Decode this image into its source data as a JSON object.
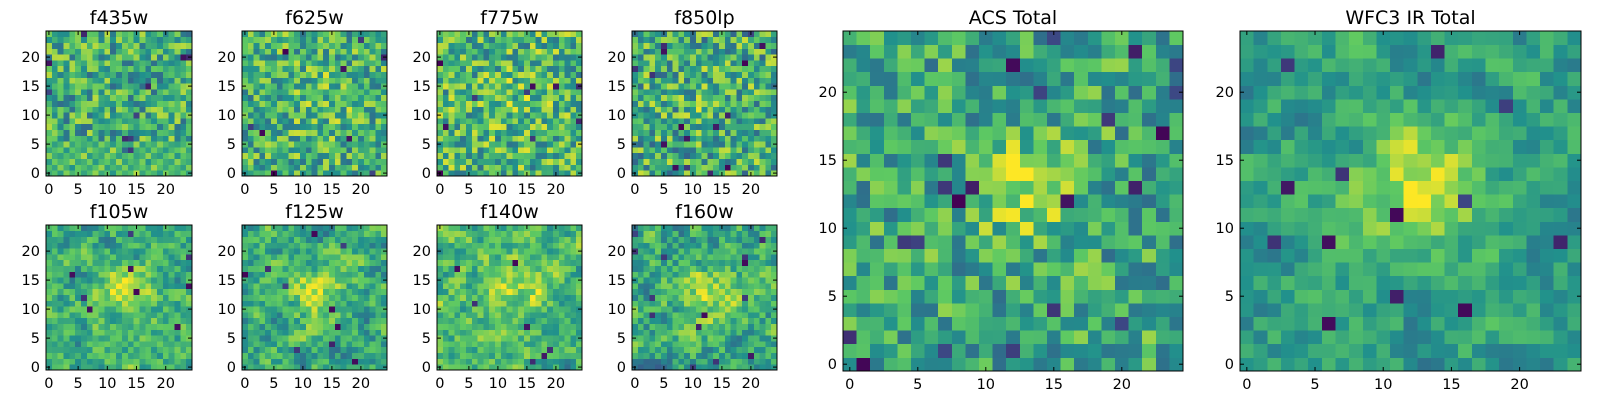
{
  "figure": {
    "colormap": "viridis",
    "colormap_stops": [
      "#440154",
      "#3b528b",
      "#21918c",
      "#5ec962",
      "#fde725"
    ]
  },
  "chart_data": [
    {
      "type": "heatmap",
      "title": "f435w",
      "grid_size": 25,
      "xlim": [
        -0.5,
        24.5
      ],
      "ylim": [
        -0.5,
        24.5
      ],
      "x_ticks": [
        0,
        5,
        10,
        15,
        20
      ],
      "y_ticks": [
        0,
        5,
        10,
        15,
        20
      ],
      "grid": false,
      "center_blob": false,
      "pattern": "uniform noise, no visible source",
      "values": [
        [
          0.62,
          0.71,
          0.55,
          0.8,
          0.66,
          0.74,
          0.58,
          0.69,
          0.83,
          0.61,
          0.72,
          0.52,
          0.77,
          0.64,
          0.7,
          0.88,
          0.59,
          0.73,
          0.66,
          0.54,
          0.79,
          0.68,
          0.62,
          0.75,
          0.57
        ],
        [
          0.7,
          0.58,
          0.81,
          0.64,
          0.5,
          0.76,
          0.69,
          0.6,
          0.72,
          0.84,
          0.55,
          0.67,
          0.61,
          0.79,
          0.57,
          0.66,
          0.74,
          0.62,
          0.86,
          0.7,
          0.59,
          0.73,
          0.65,
          0.56,
          0.8
        ],
        [
          0.55,
          0.77,
          0.66,
          0.71,
          0.83,
          0.59,
          0.64,
          0.78,
          0.53,
          0.68,
          0.74,
          0.6,
          0.85,
          0.57,
          0.69,
          0.63,
          0.79,
          0.51,
          0.68,
          0.76,
          0.62,
          0.58,
          0.82,
          0.67,
          0.61
        ],
        [
          0.82,
          0.63,
          0.57,
          0.69,
          0.61,
          0.72,
          0.87,
          0.54,
          0.66,
          0.59,
          0.8,
          0.71,
          0.56,
          0.68,
          0.75,
          0.58,
          0.64,
          0.83,
          0.6,
          0.55,
          0.71,
          0.79,
          0.52,
          0.73,
          0.66
        ],
        [
          0.6,
          0.69,
          0.76,
          0.52,
          0.74,
          0.65,
          0.58,
          0.81,
          0.7,
          0.63,
          0.57,
          0.88,
          0.67,
          0.35,
          0.18,
          0.62,
          0.7,
          0.57,
          0.77,
          0.64,
          0.53,
          0.66,
          0.74,
          0.8,
          0.58
        ],
        [
          0.73,
          0.56,
          0.64,
          0.85,
          0.59,
          0.7,
          0.62,
          0.67,
          0.57,
          0.79,
          0.66,
          0.54,
          0.72,
          0.61,
          0.58,
          0.84,
          0.55,
          0.69,
          0.63,
          0.81,
          0.68,
          0.6,
          0.57,
          0.65,
          0.76
        ]
      ]
    },
    {
      "type": "heatmap",
      "title": "f625w",
      "grid_size": 25,
      "xlim": [
        -0.5,
        24.5
      ],
      "ylim": [
        -0.5,
        24.5
      ],
      "x_ticks": [
        0,
        5,
        10,
        15,
        20
      ],
      "y_ticks": [
        0,
        5,
        10,
        15,
        20
      ],
      "grid": false,
      "center_blob": false,
      "pattern": "uniform noise, slight central brightening"
    },
    {
      "type": "heatmap",
      "title": "f775w",
      "grid_size": 25,
      "xlim": [
        -0.5,
        24.5
      ],
      "ylim": [
        -0.5,
        24.5
      ],
      "x_ticks": [
        0,
        5,
        10,
        15,
        20
      ],
      "y_ticks": [
        0,
        5,
        10,
        15,
        20
      ],
      "grid": false,
      "center_blob": false,
      "pattern": "uniform noise"
    },
    {
      "type": "heatmap",
      "title": "f850lp",
      "grid_size": 25,
      "xlim": [
        -0.5,
        24.5
      ],
      "ylim": [
        -0.5,
        24.5
      ],
      "x_ticks": [
        0,
        5,
        10,
        15,
        20
      ],
      "y_ticks": [
        0,
        5,
        10,
        15,
        20
      ],
      "grid": false,
      "center_blob": false,
      "pattern": "uniform noise, faint central source"
    },
    {
      "type": "heatmap",
      "title": "ACS Total",
      "grid_size": 25,
      "xlim": [
        -0.5,
        24.5
      ],
      "ylim": [
        -0.5,
        24.5
      ],
      "x_ticks": [
        0,
        5,
        10,
        15,
        20
      ],
      "y_ticks": [
        0,
        5,
        10,
        15,
        20
      ],
      "grid": false,
      "center_blob": true,
      "pattern": "noise with central bright source near (13, 13)"
    },
    {
      "type": "heatmap",
      "title": "f105w",
      "grid_size": 25,
      "xlim": [
        -0.5,
        24.5
      ],
      "ylim": [
        -0.5,
        24.5
      ],
      "x_ticks": [
        0,
        5,
        10,
        15,
        20
      ],
      "y_ticks": [
        0,
        5,
        10,
        15,
        20
      ],
      "grid": false,
      "center_blob": true,
      "pattern": "smooth noise with central bright source"
    },
    {
      "type": "heatmap",
      "title": "f125w",
      "grid_size": 25,
      "xlim": [
        -0.5,
        24.5
      ],
      "ylim": [
        -0.5,
        24.5
      ],
      "x_ticks": [
        0,
        5,
        10,
        15,
        20
      ],
      "y_ticks": [
        0,
        5,
        10,
        15,
        20
      ],
      "grid": false,
      "center_blob": true,
      "pattern": "smooth noise with central bright source"
    },
    {
      "type": "heatmap",
      "title": "f140w",
      "grid_size": 25,
      "xlim": [
        -0.5,
        24.5
      ],
      "ylim": [
        -0.5,
        24.5
      ],
      "x_ticks": [
        0,
        5,
        10,
        15,
        20
      ],
      "y_ticks": [
        0,
        5,
        10,
        15,
        20
      ],
      "grid": false,
      "center_blob": true,
      "pattern": "smooth noise with central bright source"
    },
    {
      "type": "heatmap",
      "title": "f160w",
      "grid_size": 25,
      "xlim": [
        -0.5,
        24.5
      ],
      "ylim": [
        -0.5,
        24.5
      ],
      "x_ticks": [
        0,
        5,
        10,
        15,
        20
      ],
      "y_ticks": [
        0,
        5,
        10,
        15,
        20
      ],
      "grid": false,
      "center_blob": true,
      "pattern": "smooth noise with central bright source"
    },
    {
      "type": "heatmap",
      "title": "WFC3 IR Total",
      "grid_size": 25,
      "xlim": [
        -0.5,
        24.5
      ],
      "ylim": [
        -0.5,
        24.5
      ],
      "x_ticks": [
        0,
        5,
        10,
        15,
        20
      ],
      "y_ticks": [
        0,
        5,
        10,
        15,
        20
      ],
      "grid": false,
      "center_blob": true,
      "pattern": "smooth noise with strong central bright source near (13, 13)"
    }
  ]
}
